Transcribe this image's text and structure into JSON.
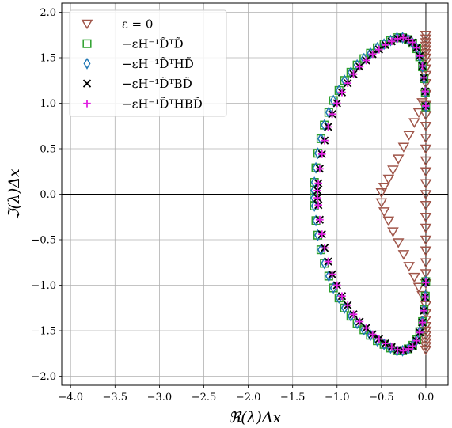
{
  "chart_data": {
    "type": "scatter",
    "xlabel": "ℜ(λ)Δx",
    "ylabel": "ℑ(λ)Δx",
    "xlim": [
      -4.1,
      0.25
    ],
    "ylim": [
      -2.1,
      2.1
    ],
    "xticks": [
      -4.0,
      -3.5,
      -3.0,
      -2.5,
      -2.0,
      -1.5,
      -1.0,
      -0.5,
      0.0
    ],
    "yticks": [
      -2.0,
      -1.5,
      -1.0,
      -0.5,
      0.0,
      0.5,
      1.0,
      1.5,
      2.0
    ],
    "xtick_labels": [
      "−4.0",
      "−3.5",
      "−3.0",
      "−2.5",
      "−2.0",
      "−1.5",
      "−1.0",
      "−0.5",
      "0.0"
    ],
    "ytick_labels": [
      "−2.0",
      "−1.5",
      "−1.0",
      "−0.5",
      "0.0",
      "0.5",
      "1.0",
      "1.5",
      "2.0"
    ],
    "grid": true,
    "zero_lines": true,
    "legend_position": "top-left",
    "series": [
      {
        "name": "ε = 0",
        "marker": "triangle-down",
        "color": "#a0564a",
        "x": [
          0.0,
          -0.04,
          -0.08,
          -0.13,
          -0.19,
          -0.25,
          -0.31,
          -0.37,
          -0.42,
          -0.47,
          -0.5,
          -0.5,
          -0.47,
          -0.42,
          -0.37,
          -0.31,
          -0.25,
          -0.19,
          -0.13,
          -0.08,
          -0.04,
          0.0,
          0.0,
          0.0,
          0.0,
          0.0,
          0.0,
          0.0,
          0.0,
          0.0,
          0.0,
          0.0,
          0.0,
          0.0,
          0.0,
          0.0,
          0.0,
          0.0,
          0.0,
          0.0,
          0.0,
          0.0,
          0.0,
          0.0,
          0.0,
          0.0,
          0.0,
          0.0,
          0.0,
          0.0,
          0.0,
          0.0,
          0.0,
          0.0,
          0.0,
          0.0,
          0.0,
          0.0,
          0.0
        ],
        "y": [
          1.1,
          1.01,
          0.9,
          0.79,
          0.65,
          0.52,
          0.39,
          0.27,
          0.17,
          0.08,
          0.02,
          -0.09,
          -0.19,
          -0.29,
          -0.41,
          -0.53,
          -0.66,
          -0.79,
          -0.91,
          -1.02,
          -1.11,
          1.75,
          1.71,
          1.67,
          1.63,
          1.59,
          1.55,
          1.5,
          1.45,
          1.38,
          1.31,
          1.22,
          0.98,
          0.87,
          0.75,
          0.62,
          0.5,
          0.37,
          0.25,
          0.12,
          0.0,
          -0.12,
          -0.25,
          -0.37,
          -0.5,
          -0.62,
          -0.75,
          -0.87,
          -0.98,
          -1.22,
          -1.31,
          -1.38,
          -1.45,
          -1.5,
          -1.55,
          -1.59,
          -1.63,
          -1.67,
          -1.71
        ]
      },
      {
        "name": "−εH⁻¹D̃ᵀD̃",
        "marker": "square",
        "color": "#2ca02c",
        "x": [
          -1.26,
          -1.255,
          -1.238,
          -1.216,
          -1.181,
          -1.143,
          -1.093,
          -1.041,
          -0.978,
          -0.915,
          -0.844,
          -0.774,
          -0.697,
          -0.624,
          -0.547,
          -0.471,
          -0.397,
          -0.325,
          -0.262,
          -0.2,
          -0.149,
          -0.102,
          -0.069,
          -0.038,
          -0.021,
          -0.006,
          -0.001
        ],
        "y": [
          -0.04,
          0.13,
          0.29,
          0.45,
          0.61,
          0.76,
          0.9,
          1.03,
          1.14,
          1.25,
          1.34,
          1.42,
          1.49,
          1.55,
          1.61,
          1.65,
          1.69,
          1.72,
          1.72,
          1.7,
          1.66,
          1.6,
          1.51,
          1.4,
          1.27,
          1.12,
          0.96
        ]
      },
      {
        "name": "−εH⁻¹D̃ᵀHD̃",
        "marker": "diamond",
        "color": "#1f77b4",
        "x": [
          -1.26,
          -1.255,
          -1.238,
          -1.216,
          -1.181,
          -1.143,
          -1.093,
          -1.041,
          -0.978,
          -0.915,
          -0.844,
          -0.774,
          -0.697,
          -0.624,
          -0.547,
          -0.471,
          -0.397,
          -0.325,
          -0.262,
          -0.2,
          -0.149,
          -0.102,
          -0.069,
          -0.038,
          -0.021,
          -0.006,
          -0.001
        ],
        "y": [
          -0.04,
          0.13,
          0.29,
          0.45,
          0.61,
          0.76,
          0.9,
          1.03,
          1.14,
          1.25,
          1.34,
          1.42,
          1.49,
          1.55,
          1.61,
          1.65,
          1.69,
          1.72,
          1.72,
          1.7,
          1.66,
          1.6,
          1.51,
          1.4,
          1.27,
          1.12,
          0.96
        ]
      },
      {
        "name": "−εH⁻¹D̃ᵀBD̃",
        "marker": "x",
        "color": "#000000",
        "x": [
          -1.22,
          -1.21,
          -1.195,
          -1.17,
          -1.14,
          -1.1,
          -1.055,
          -1.0,
          -0.945,
          -0.88,
          -0.815,
          -0.745,
          -0.672,
          -0.6,
          -0.527,
          -0.455,
          -0.385,
          -0.318,
          -0.255,
          -0.197,
          -0.148,
          -0.104,
          -0.07,
          -0.04,
          -0.022,
          -0.007,
          -0.001
        ],
        "y": [
          -0.04,
          0.12,
          0.28,
          0.44,
          0.59,
          0.74,
          0.88,
          1.0,
          1.12,
          1.22,
          1.32,
          1.4,
          1.47,
          1.54,
          1.59,
          1.64,
          1.68,
          1.71,
          1.72,
          1.7,
          1.67,
          1.61,
          1.52,
          1.41,
          1.28,
          1.13,
          0.97
        ]
      },
      {
        "name": "−εH⁻¹D̃ᵀHBD̃",
        "marker": "plus",
        "color": "#e020e0",
        "x": [
          -1.22,
          -1.21,
          -1.195,
          -1.17,
          -1.14,
          -1.1,
          -1.055,
          -1.0,
          -0.945,
          -0.88,
          -0.815,
          -0.745,
          -0.672,
          -0.6,
          -0.527,
          -0.455,
          -0.385,
          -0.318,
          -0.255,
          -0.197,
          -0.148,
          -0.104,
          -0.07,
          -0.04,
          -0.022,
          -0.007,
          -0.001
        ],
        "y": [
          -0.04,
          0.12,
          0.28,
          0.44,
          0.59,
          0.74,
          0.88,
          1.0,
          1.12,
          1.22,
          1.32,
          1.4,
          1.47,
          1.54,
          1.59,
          1.64,
          1.68,
          1.71,
          1.72,
          1.7,
          1.67,
          1.61,
          1.52,
          1.41,
          1.28,
          1.13,
          0.97
        ]
      }
    ]
  }
}
